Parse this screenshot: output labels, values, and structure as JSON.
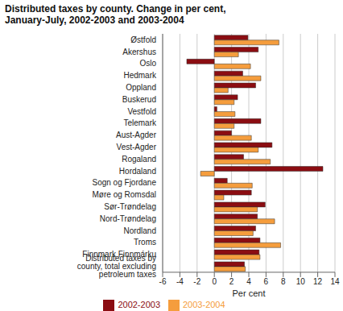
{
  "chart_data": {
    "type": "bar",
    "title": "Distributed taxes by county. Change in per cent, January-July, 2002-2003 and 2003-2004",
    "orientation": "horizontal",
    "x_label": "Per cent",
    "categories": [
      "Østfold",
      "Akershus",
      "Oslo",
      "Hedmark",
      "Oppland",
      "Buskerud",
      "Vestfold",
      "Telemark",
      "Aust-Agder",
      "Vest-Agder",
      "Rogaland",
      "Hordaland",
      "Sogn og Fjordane",
      "Møre og Romsdal",
      "Sør-Trøndelag",
      "Nord-Trøndelag",
      "Nordland",
      "Troms",
      "Finnmark Finnmárku",
      "Distributed taxes by county, total excluding petroleum taxes"
    ],
    "series": [
      {
        "name": "2002-2003",
        "color": "#8b0d12",
        "values": [
          3.9,
          5.1,
          -3.2,
          3.3,
          4.8,
          2.7,
          0.3,
          5.4,
          2.0,
          6.7,
          3.4,
          12.6,
          1.5,
          4.3,
          5.9,
          5.0,
          4.8,
          5.3,
          5.2,
          3.5
        ]
      },
      {
        "name": "2003-2004",
        "color": "#f59d3d",
        "values": [
          7.5,
          2.8,
          4.2,
          5.4,
          1.6,
          2.3,
          2.4,
          2.3,
          4.3,
          5.1,
          6.5,
          -1.6,
          4.4,
          1.1,
          5.0,
          7.0,
          4.5,
          7.7,
          5.3,
          3.6
        ]
      }
    ],
    "xlim": [
      -6,
      14
    ],
    "xticks": [
      -6,
      -4,
      -2,
      0,
      2,
      4,
      6,
      8,
      10,
      12,
      14
    ],
    "grid": true,
    "legend": "bottom"
  }
}
